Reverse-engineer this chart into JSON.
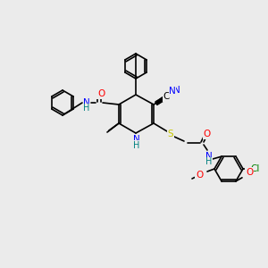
{
  "bg_color": "#ebebeb",
  "bond_color": "#000000",
  "atom_label_colors": {
    "N": "#0000ff",
    "O": "#ff0000",
    "S": "#c8c800",
    "Cl": "#008000",
    "H": "#008080",
    "C": "#000000"
  },
  "font_size": 7.5,
  "bond_width": 1.2
}
